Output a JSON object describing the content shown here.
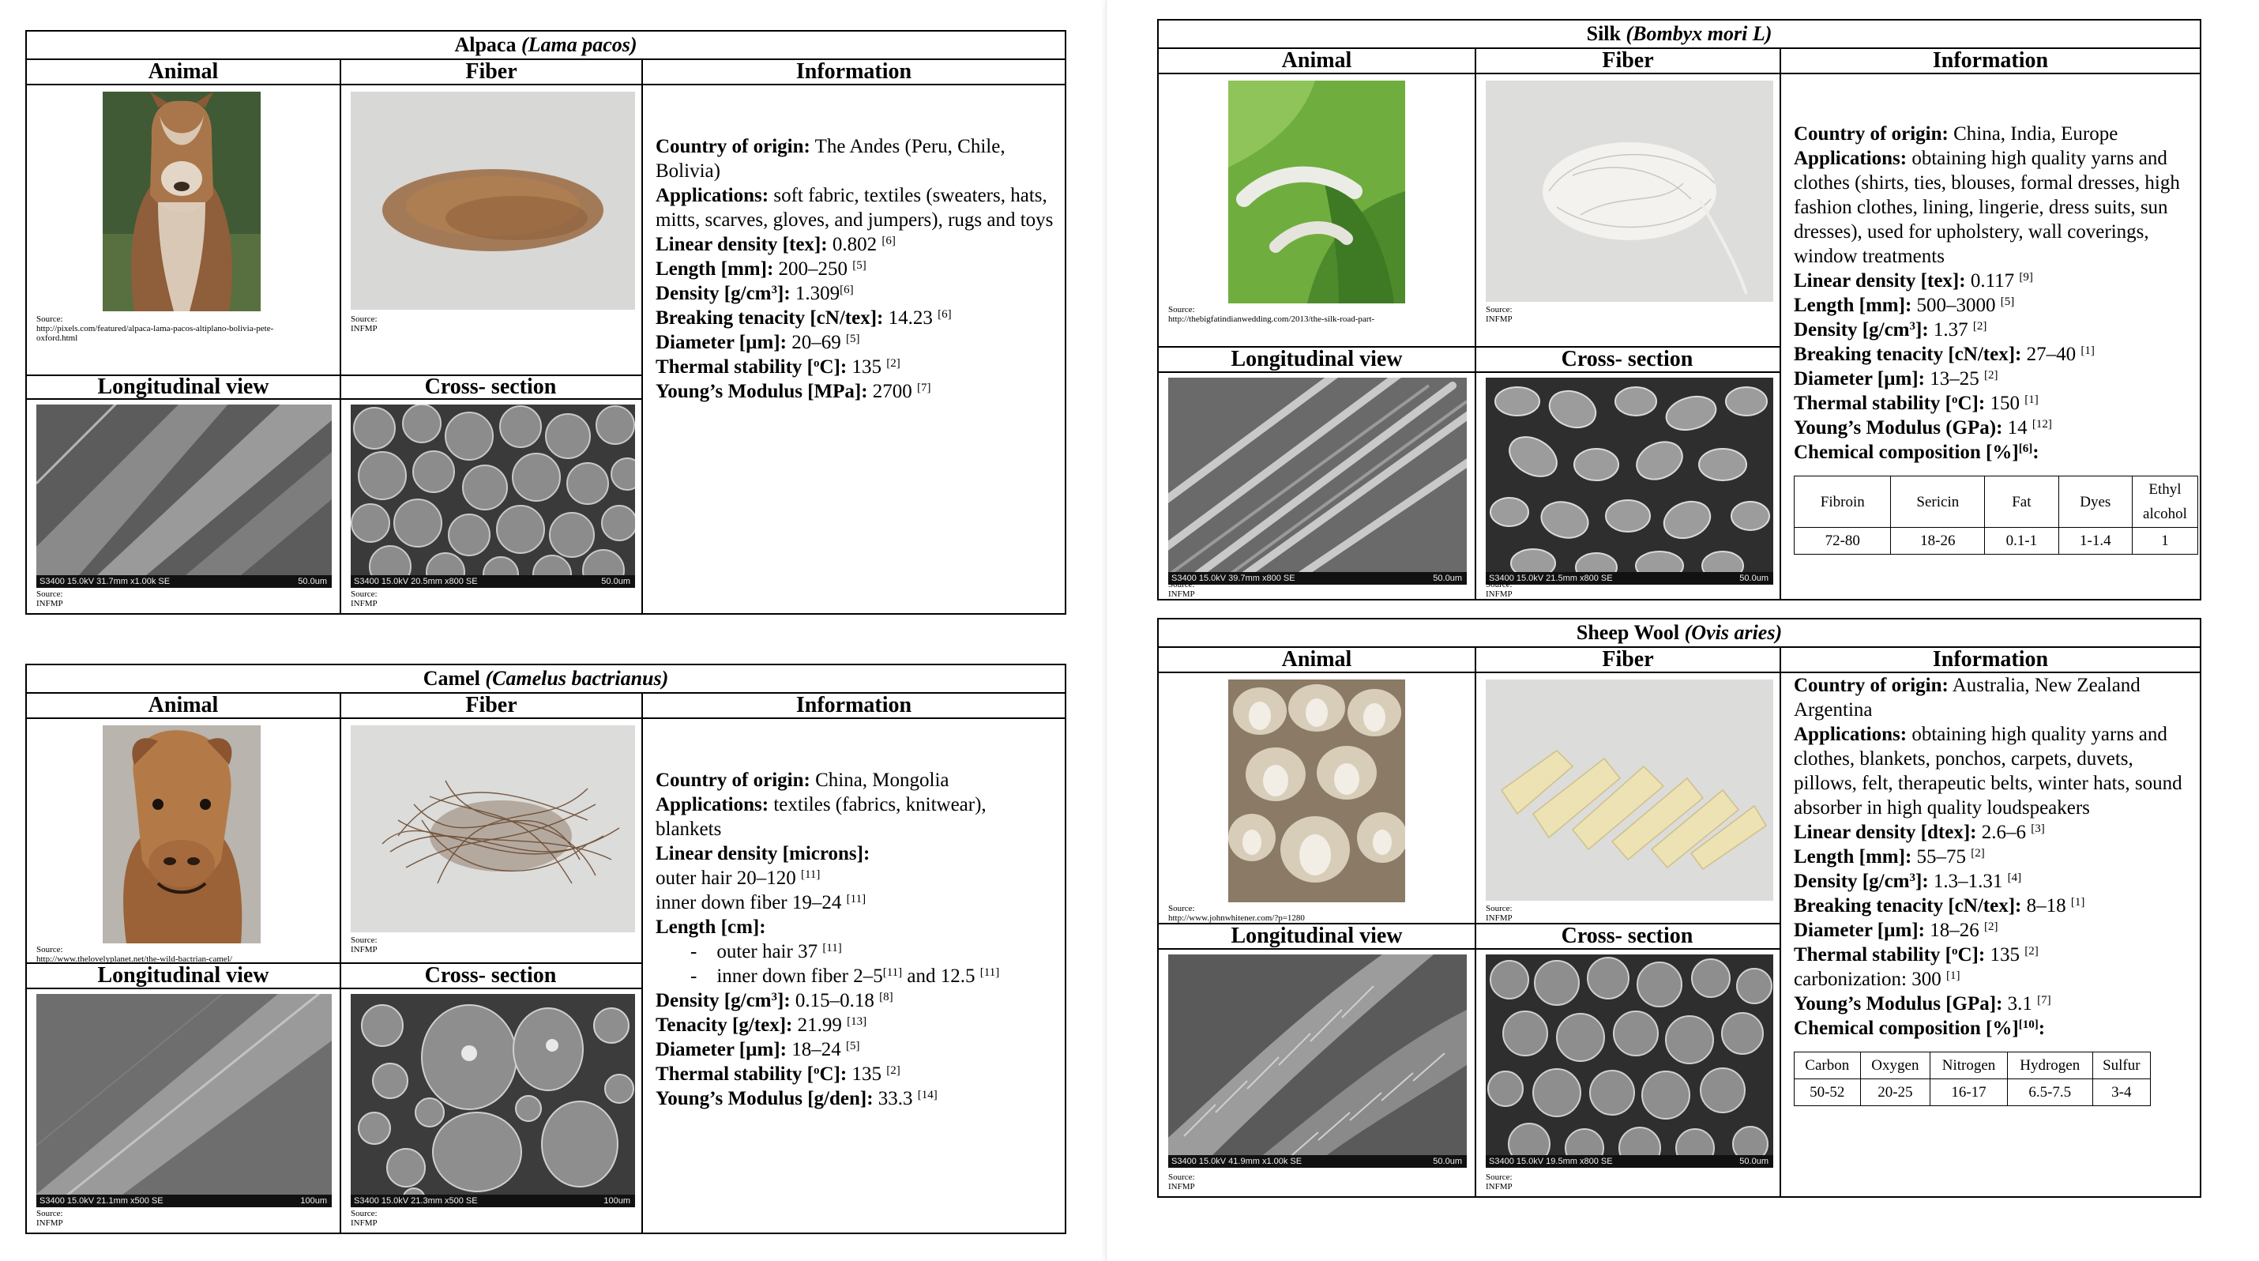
{
  "alpaca": {
    "title_common": "Alpaca",
    "title_latin": "(Lama pacos)",
    "headers": {
      "animal": "Animal",
      "fiber": "Fiber",
      "info": "Information",
      "long": "Longitudinal view",
      "cross": "Cross- section"
    },
    "animal_source": "Source:",
    "animal_source_url": "http://pixels.com/featured/alpaca-lama-pacos-altiplano-bolivia-pete-oxford.html",
    "fiber_source": "Source:",
    "fiber_source_org": "INFMP",
    "long_scale_left": "S3400 15.0kV 31.7mm x1.00k SE",
    "long_scale_right": "50.0um",
    "cross_scale_left": "S3400 15.0kV 20.5mm x800 SE",
    "cross_scale_right": "50.0um",
    "long_source": "Source:",
    "long_source_org": "INFMP",
    "cross_source": "Source:",
    "cross_source_org": "INFMP",
    "info": {
      "country_label": "Country of origin:",
      "country_value": "The Andes (Peru, Chile, Bolivia)",
      "app_label": "Applications:",
      "app_value": "soft fabric, textiles (sweaters, hats, mitts, scarves, gloves, and jumpers), rugs and toys",
      "lin_label": "Linear density [tex]:",
      "lin_value": "0.802",
      "lin_ref": "[6]",
      "len_label": "Length [mm]:",
      "len_value": "200–250",
      "len_ref": "[5]",
      "den_label_a": "Density [g/cm",
      "den_label_sup": "3",
      "den_label_b": "]:",
      "den_value": "1.309",
      "den_ref": "[6]",
      "brk_label": "Breaking tenacity [cN/tex]:",
      "brk_value": "14.23",
      "brk_ref": "[6]",
      "dia_label": "Diameter [µm]:",
      "dia_value": "20–69",
      "dia_ref": "[5]",
      "th_label_a": "Thermal stability [",
      "th_label_sup": "o",
      "th_label_b": "C]:",
      "th_value": "135",
      "th_ref": "[2]",
      "ym_label": "Young’s Modulus [MPa]:",
      "ym_value": "2700",
      "ym_ref": "[7]"
    }
  },
  "camel": {
    "title_common": "Camel",
    "title_latin": "(Camelus bactrianus)",
    "headers": {
      "animal": "Animal",
      "fiber": "Fiber",
      "info": "Information",
      "long": "Longitudinal view",
      "cross": "Cross- section"
    },
    "animal_source": "Source:",
    "animal_source_url": "http://www.thelovelyplanet.net/the-wild-bactrian-camel/",
    "fiber_source": "Source:",
    "fiber_source_org": "INFMP",
    "long_scale_left": "S3400 15.0kV 21.1mm x500 SE",
    "long_scale_right": "100um",
    "cross_scale_left": "S3400 15.0kV 21.3mm x500 SE",
    "cross_scale_right": "100um",
    "long_source": "Source:",
    "long_source_org": "INFMP",
    "cross_source": "Source:",
    "cross_source_org": "INFMP",
    "info": {
      "country_label": "Country of origin:",
      "country_value": "China, Mongolia",
      "app_label": "Applications:",
      "app_value": "textiles (fabrics, knitwear), blankets",
      "lin_label": "Linear density [microns]:",
      "outer_text": "outer hair 20–120",
      "outer_ref": "[11]",
      "inner_text": "inner down fiber 19–24",
      "inner_ref": "[11]",
      "len_label": "Length [cm]:",
      "len1_dash": "-",
      "len1_text": "outer hair 37",
      "len1_ref": "[11]",
      "len2_dash": "-",
      "len2_text_a": "inner down fiber 2–5",
      "len2_ref_a": "[11]",
      "len2_text_b": "and 12.5",
      "len2_ref_b": "[11]",
      "den_label_a": "Density [g/cm",
      "den_label_sup": "3",
      "den_label_b": "]:",
      "den_value": "0.15–0.18",
      "den_ref": "[8]",
      "ten_label": "Tenacity [g/tex]:",
      "ten_value": "21.99",
      "ten_ref": "[13]",
      "dia_label": "Diameter [µm]:",
      "dia_value": "18–24",
      "dia_ref": "[5]",
      "th_label_a": "Thermal stability [",
      "th_label_sup": "o",
      "th_label_b": "C]:",
      "th_value": "135",
      "th_ref": "[2]",
      "ym_label": "Young’s Modulus [g/den]:",
      "ym_value": "33.3",
      "ym_ref": "[14]"
    }
  },
  "silk": {
    "title_common": "Silk",
    "title_latin": "(Bombyx mori L)",
    "headers": {
      "animal": "Animal",
      "fiber": "Fiber",
      "info": "Information",
      "long": "Longitudinal view",
      "cross": "Cross- section"
    },
    "animal_source": "Source:",
    "animal_source_url": "http://thebigfatindianwedding.com/2013/the-silk-road-part-",
    "fiber_source": "Source:",
    "fiber_source_org": "INFMP",
    "long_scale_left": "S3400 15.0kV 39.7mm x800 SE",
    "long_scale_right": "50.0um",
    "cross_scale_left": "S3400 15.0kV 21.5mm x800 SE",
    "cross_scale_right": "50.0um",
    "long_source": "Source:",
    "long_source_org": "INFMP",
    "cross_source": "Source:",
    "cross_source_org": "INFMP",
    "info": {
      "country_label": "Country of origin:",
      "country_value": "China, India, Europe",
      "app_label": "Applications:",
      "app_value": "obtaining high quality yarns and clothes (shirts, ties, blouses, formal dresses, high fashion clothes, lining, lingerie, dress suits, sun dresses),  used for upholstery, wall coverings, window treatments",
      "lin_label": "Linear density [tex]:",
      "lin_value": "0.117",
      "lin_ref": "[9]",
      "len_label": "Length [mm]:",
      "len_value": "500–3000",
      "len_ref": "[5]",
      "den_label_a": "Density [g/cm",
      "den_label_sup": "3",
      "den_label_b": "]:",
      "den_value": "1.37",
      "den_ref": "[2]",
      "brk_label": "Breaking tenacity [cN/tex]:",
      "brk_value": "27–40",
      "brk_ref": "[1]",
      "dia_label": "Diameter [µm]:",
      "dia_value": "13–25",
      "dia_ref": "[2]",
      "th_label_a": "Thermal stability [",
      "th_label_sup": "o",
      "th_label_b": "C]:",
      "th_value": "150",
      "th_ref": "[1]",
      "ym_label": "Young’s Modulus (GPa):",
      "ym_value": "14",
      "ym_ref": "[12]",
      "chem_label": "Chemical composition [%]",
      "chem_ref": "[6]",
      "chem_colon": ":",
      "chem_headers": [
        "Fibroin",
        "Sericin",
        "Fat",
        "Dyes",
        "Ethyl alcohol"
      ],
      "chem_values": [
        "72-80",
        "18-26",
        "0.1-1",
        "1-1.4",
        "1"
      ]
    }
  },
  "wool": {
    "title_common": "Sheep Wool",
    "title_latin": "(Ovis aries)",
    "headers": {
      "animal": "Animal",
      "fiber": "Fiber",
      "info": "Information",
      "long": "Longitudinal view",
      "cross": "Cross- section"
    },
    "animal_source": "Source:",
    "animal_source_url": "http://www.johnwhitener.com/?p=1280",
    "fiber_source": "Source:",
    "fiber_source_org": "INFMP",
    "long_scale_left": "S3400 15.0kV 41.9mm x1.00k SE",
    "long_scale_right": "50.0um",
    "cross_scale_left": "S3400 15.0kV 19.5mm x800 SE",
    "cross_scale_right": "50.0um",
    "long_source": "Source:",
    "long_source_org": "INFMP",
    "cross_source": "Source:",
    "cross_source_org": "INFMP",
    "info": {
      "country_label": "Country of origin:",
      "country_value": "Australia, New Zealand Argentina",
      "app_label": "Applications:",
      "app_value": "obtaining high quality yarns and clothes, blankets, ponchos, carpets, duvets, pillows, felt, therapeutic belts, winter hats, sound absorber in high quality loudspeakers",
      "lin_label": "Linear density [dtex]:",
      "lin_value": "2.6–6",
      "lin_ref": "[3]",
      "len_label": "Length [mm]:",
      "len_value": "55–75",
      "len_ref": "[2]",
      "den_label_a": "Density [g/cm",
      "den_label_sup": "3",
      "den_label_b": "]:",
      "den_value": "1.3–1.31",
      "den_ref": "[4]",
      "brk_label": "Breaking tenacity [cN/tex]:",
      "brk_value": "8–18",
      "brk_ref": "[1]",
      "dia_label": "Diameter [µm]:",
      "dia_value": "18–26",
      "dia_ref": "[2]",
      "th_label_a": "Thermal stability [",
      "th_label_sup": "o",
      "th_label_b": "C]:",
      "th_value": "135",
      "th_ref": "[2]",
      "carb_text": "carbonization: 300",
      "carb_ref": "[1]",
      "ym_label": "Young’s Modulus [GPa]:",
      "ym_value": "3.1",
      "ym_ref": "[7]",
      "chem_label": "Chemical composition [%]",
      "chem_ref": "[10]",
      "chem_colon": ":",
      "chem_headers": [
        "Carbon",
        "Oxygen",
        "Nitrogen",
        "Hydrogen",
        "Sulfur"
      ],
      "chem_values": [
        "50-52",
        "20-25",
        "16-17",
        "6.5-7.5",
        "3-4"
      ]
    }
  },
  "colors": {
    "alpaca_fur": "#9a6a42",
    "camel_fur": "#a0683a",
    "silk_leaf": "#5a9a3a",
    "silk_fiber": "#efeeea",
    "wool_fiber": "#ece2b4",
    "sem_gray": "#7a7a7a"
  }
}
